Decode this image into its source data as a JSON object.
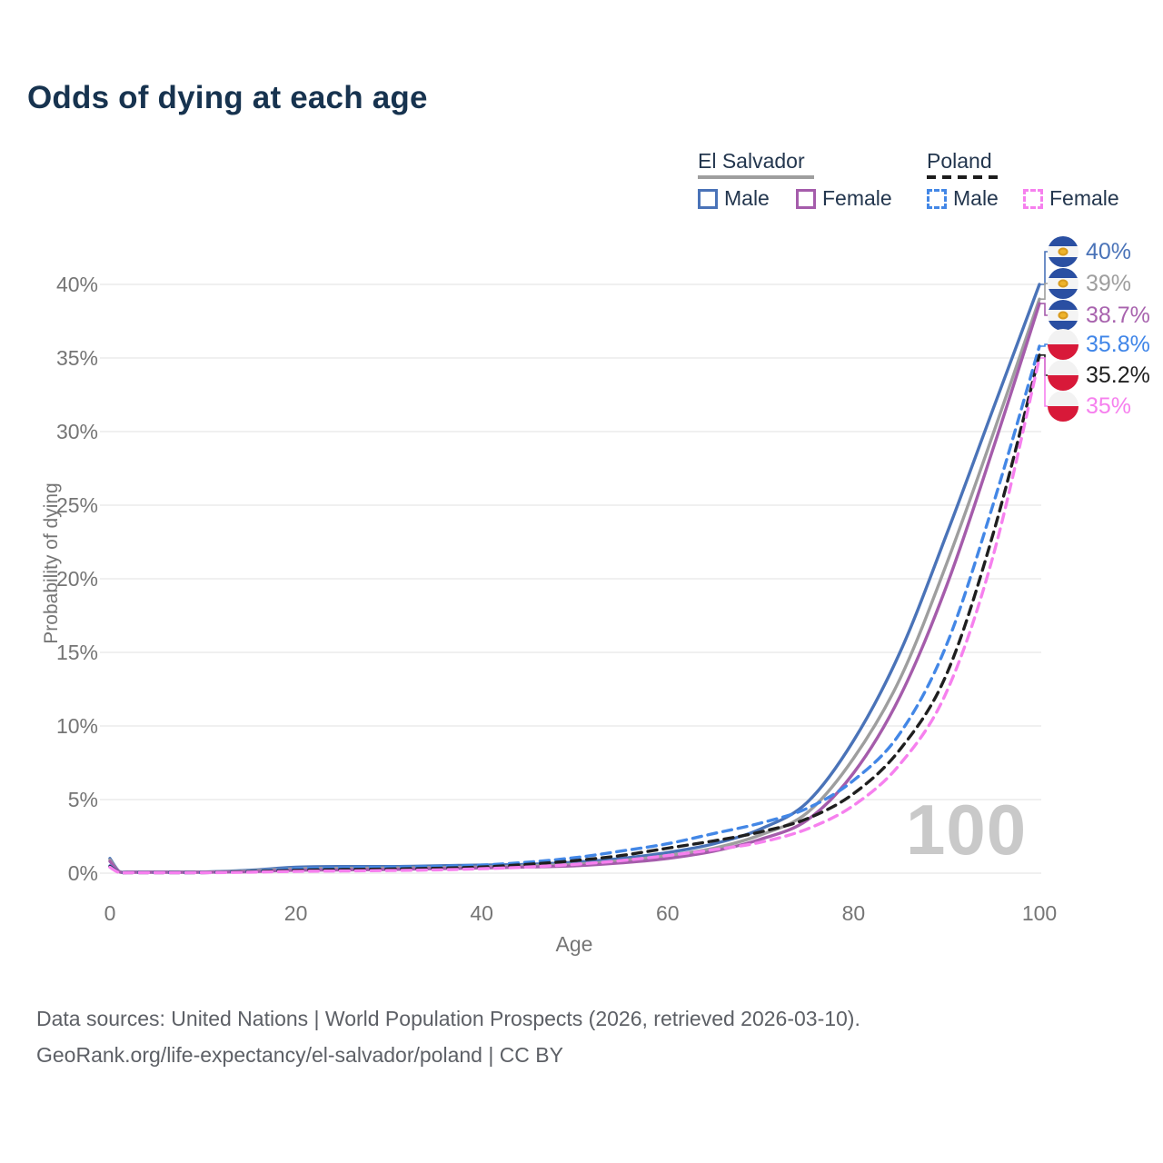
{
  "title": "Odds of dying at each age",
  "legend": {
    "groups": [
      {
        "name": "El Salvador",
        "line_style": "solid",
        "line_color": "#9e9e9e",
        "items": [
          {
            "label": "Male",
            "color": "#4a73b8",
            "dashed": false
          },
          {
            "label": "Female",
            "color": "#a55cab",
            "dashed": false
          }
        ]
      },
      {
        "name": "Poland",
        "line_style": "dashed",
        "line_color": "#1c1c1c",
        "items": [
          {
            "label": "Male",
            "color": "#4387e6",
            "dashed": true
          },
          {
            "label": "Female",
            "color": "#f680ee",
            "dashed": true
          }
        ]
      }
    ]
  },
  "axes": {
    "y_label": "Probability of dying",
    "x_label": "Age"
  },
  "watermark": "100",
  "end_labels": [
    {
      "value": "40%",
      "color": "#4a73b8",
      "flag": "el-salvador"
    },
    {
      "value": "39%",
      "color": "#9e9e9e",
      "flag": "el-salvador"
    },
    {
      "value": "38.7%",
      "color": "#a863ae",
      "flag": "el-salvador"
    },
    {
      "value": "35.8%",
      "color": "#3f85e8",
      "flag": "poland"
    },
    {
      "value": "35.2%",
      "color": "#1f1f1f",
      "flag": "poland"
    },
    {
      "value": "35%",
      "color": "#f680ee",
      "flag": "poland"
    }
  ],
  "footer": {
    "line1": "Data sources: United Nations | World Population Prospects (2026, retrieved 2026-03-10).",
    "line2": "GeoRank.org/life-expectancy/el-salvador/poland | CC BY"
  },
  "chart_data": {
    "type": "line",
    "title": "Odds of dying at each age",
    "xlabel": "Age",
    "ylabel": "Probability of dying",
    "xlim": [
      0,
      100
    ],
    "ylim_pct": [
      0,
      42
    ],
    "x_ticks": [
      0,
      20,
      40,
      60,
      80,
      100
    ],
    "y_ticks_pct": [
      0,
      5,
      10,
      15,
      20,
      25,
      30,
      35,
      40
    ],
    "grid": true,
    "legend_position": "top-right",
    "x": [
      0,
      1,
      2,
      5,
      10,
      15,
      20,
      25,
      30,
      35,
      40,
      45,
      50,
      55,
      60,
      65,
      70,
      75,
      80,
      85,
      90,
      95,
      100
    ],
    "series": [
      {
        "name": "El Salvador Male",
        "color": "#4a73b8",
        "dashed": false,
        "end_label": "40%",
        "values_pct": [
          1.0,
          0.12,
          0.08,
          0.08,
          0.08,
          0.2,
          0.4,
          0.45,
          0.45,
          0.5,
          0.55,
          0.6,
          0.75,
          1.0,
          1.4,
          2.0,
          3.0,
          4.8,
          9.0,
          15.0,
          23.0,
          31.5,
          40.0
        ]
      },
      {
        "name": "El Salvador Both sexes",
        "color": "#9e9e9e",
        "dashed": false,
        "end_label": "39%",
        "values_pct": [
          0.9,
          0.1,
          0.07,
          0.07,
          0.07,
          0.15,
          0.3,
          0.33,
          0.35,
          0.38,
          0.42,
          0.5,
          0.6,
          0.85,
          1.2,
          1.7,
          2.6,
          4.1,
          7.8,
          13.2,
          21.0,
          29.8,
          39.0
        ]
      },
      {
        "name": "El Salvador Female",
        "color": "#a55cab",
        "dashed": false,
        "end_label": "38.7%",
        "values_pct": [
          0.8,
          0.09,
          0.06,
          0.06,
          0.06,
          0.1,
          0.2,
          0.22,
          0.25,
          0.3,
          0.35,
          0.42,
          0.5,
          0.7,
          1.0,
          1.5,
          2.3,
          3.6,
          6.8,
          12.0,
          19.5,
          28.8,
          38.7
        ]
      },
      {
        "name": "Poland Male",
        "color": "#4387e6",
        "dashed": true,
        "end_label": "35.8%",
        "values_pct": [
          0.5,
          0.06,
          0.04,
          0.04,
          0.04,
          0.12,
          0.3,
          0.35,
          0.4,
          0.45,
          0.55,
          0.75,
          1.05,
          1.5,
          2.0,
          2.7,
          3.4,
          4.4,
          6.3,
          9.5,
          15.5,
          25.0,
          35.8
        ]
      },
      {
        "name": "Poland Both sexes",
        "color": "#1f1f1f",
        "dashed": true,
        "end_label": "35.2%",
        "values_pct": [
          0.45,
          0.05,
          0.04,
          0.04,
          0.04,
          0.1,
          0.2,
          0.25,
          0.28,
          0.33,
          0.42,
          0.6,
          0.85,
          1.2,
          1.7,
          2.2,
          2.8,
          3.7,
          5.4,
          8.4,
          13.5,
          23.0,
          35.2
        ]
      },
      {
        "name": "Poland Female",
        "color": "#f680ee",
        "dashed": true,
        "end_label": "35%",
        "values_pct": [
          0.4,
          0.04,
          0.03,
          0.03,
          0.03,
          0.07,
          0.12,
          0.15,
          0.18,
          0.22,
          0.3,
          0.42,
          0.6,
          0.85,
          1.2,
          1.6,
          2.1,
          3.0,
          4.6,
          7.4,
          12.3,
          21.5,
          35.0
        ]
      }
    ]
  }
}
